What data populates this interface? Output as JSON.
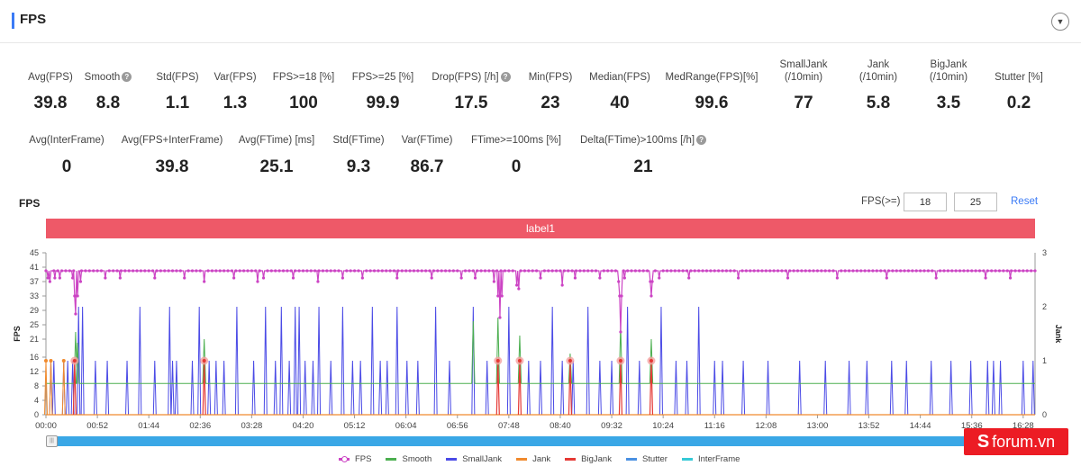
{
  "header": {
    "title": "FPS",
    "collapse_icon": "chevron-down-icon"
  },
  "metrics_row1": [
    {
      "label": "Avg(FPS)",
      "value": "39.8",
      "help": false
    },
    {
      "label": "Smooth",
      "value": "8.8",
      "help": true
    },
    {
      "label": "Std(FPS)",
      "value": "1.1",
      "help": false
    },
    {
      "label": "Var(FPS)",
      "value": "1.3",
      "help": false
    },
    {
      "label": "FPS>=18 [%]",
      "value": "100",
      "help": false
    },
    {
      "label": "FPS>=25 [%]",
      "value": "99.9",
      "help": false
    },
    {
      "label": "Drop(FPS) [/h]",
      "value": "17.5",
      "help": true
    },
    {
      "label": "Min(FPS)",
      "value": "23",
      "help": false
    },
    {
      "label": "Median(FPS)",
      "value": "40",
      "help": false
    },
    {
      "label": "MedRange(FPS)[%]",
      "value": "99.6",
      "help": false
    },
    {
      "label": "SmallJank",
      "label2": "(/10min)",
      "value": "77",
      "help": false
    },
    {
      "label": "Jank",
      "label2": "(/10min)",
      "value": "5.8",
      "help": false
    },
    {
      "label": "BigJank",
      "label2": "(/10min)",
      "value": "3.5",
      "help": false
    },
    {
      "label": "Stutter [%]",
      "value": "0.2",
      "help": false
    }
  ],
  "metrics_row2": [
    {
      "label": "Avg(InterFrame)",
      "value": "0",
      "help": false
    },
    {
      "label": "Avg(FPS+InterFrame)",
      "value": "39.8",
      "help": false
    },
    {
      "label": "Avg(FTime) [ms]",
      "value": "25.1",
      "help": false
    },
    {
      "label": "Std(FTime)",
      "value": "9.3",
      "help": false
    },
    {
      "label": "Var(FTime)",
      "value": "86.7",
      "help": false
    },
    {
      "label": "FTime>=100ms [%]",
      "value": "0",
      "help": false
    },
    {
      "label": "Delta(FTime)>100ms [/h]",
      "value": "21",
      "help": true
    }
  ],
  "controls": {
    "section_title": "FPS",
    "threshold_label": "FPS(>=)",
    "threshold_low": "18",
    "threshold_high": "25",
    "reset_label": "Reset"
  },
  "label_band": "label1",
  "slider_handle_icon": "grip-icon",
  "legend": [
    {
      "name": "FPS",
      "color": "#cc44c4",
      "marker": true
    },
    {
      "name": "Smooth",
      "color": "#4caf50",
      "marker": false
    },
    {
      "name": "SmallJank",
      "color": "#4a4ae6",
      "marker": false
    },
    {
      "name": "Jank",
      "color": "#f08a2e",
      "marker": false
    },
    {
      "name": "BigJank",
      "color": "#e53935",
      "marker": false
    },
    {
      "name": "Stutter",
      "color": "#4a90e2",
      "marker": false
    },
    {
      "name": "InterFrame",
      "color": "#36c9d6",
      "marker": false
    }
  ],
  "watermark": {
    "icon": "s-logo-icon",
    "text": "forum.vn",
    "logo_letter": "S"
  },
  "chart_data": {
    "type": "line",
    "xlabel": "",
    "ylabel": "FPS",
    "ylabel_right": "Jank",
    "ylim": [
      0,
      45
    ],
    "ylim_right": [
      0,
      3
    ],
    "y_ticks": [
      0,
      4,
      8,
      12,
      16,
      21,
      25,
      29,
      33,
      37,
      41,
      45
    ],
    "y_ticks_right": [
      0,
      1,
      2,
      3
    ],
    "x_ticks": [
      "00:00",
      "00:52",
      "01:44",
      "02:36",
      "03:28",
      "04:20",
      "05:12",
      "06:04",
      "06:56",
      "07:48",
      "08:40",
      "09:32",
      "10:24",
      "11:16",
      "12:08",
      "13:00",
      "13:52",
      "14:44",
      "15:36",
      "16:28"
    ],
    "x_max_seconds": 1000,
    "fps_baseline": 40,
    "fps_dips": [
      [
        2,
        38
      ],
      [
        4,
        37
      ],
      [
        9,
        38
      ],
      [
        14,
        38
      ],
      [
        27,
        38
      ],
      [
        29,
        33
      ],
      [
        30,
        28
      ],
      [
        32,
        33
      ],
      [
        35,
        37
      ],
      [
        60,
        38
      ],
      [
        75,
        38
      ],
      [
        110,
        38
      ],
      [
        140,
        38
      ],
      [
        160,
        37
      ],
      [
        190,
        38
      ],
      [
        214,
        37
      ],
      [
        220,
        38
      ],
      [
        250,
        38
      ],
      [
        275,
        37
      ],
      [
        300,
        38
      ],
      [
        320,
        38
      ],
      [
        355,
        38
      ],
      [
        390,
        38
      ],
      [
        420,
        38
      ],
      [
        434,
        38
      ],
      [
        453,
        37
      ],
      [
        457,
        33
      ],
      [
        459,
        27
      ],
      [
        461,
        33
      ],
      [
        476,
        36
      ],
      [
        478,
        35
      ],
      [
        500,
        38
      ],
      [
        522,
        36
      ],
      [
        535,
        38
      ],
      [
        560,
        38
      ],
      [
        579,
        37
      ],
      [
        580,
        33
      ],
      [
        581,
        23
      ],
      [
        582,
        33
      ],
      [
        585,
        38
      ],
      [
        611,
        37
      ],
      [
        612,
        33
      ],
      [
        613,
        37
      ],
      [
        620,
        38
      ],
      [
        650,
        38
      ],
      [
        700,
        38
      ],
      [
        750,
        38
      ],
      [
        800,
        38
      ],
      [
        850,
        38
      ],
      [
        900,
        38
      ],
      [
        950,
        38
      ],
      [
        975,
        38
      ]
    ],
    "smooth_baseline": 8.7,
    "smooth_spikes": [
      [
        30,
        23
      ],
      [
        32,
        20
      ],
      [
        160,
        21
      ],
      [
        432,
        26
      ],
      [
        457,
        27
      ],
      [
        479,
        22
      ],
      [
        530,
        17
      ],
      [
        581,
        25
      ],
      [
        612,
        21
      ]
    ],
    "smalljank_times": [
      5,
      8,
      18,
      22,
      27,
      33,
      37,
      50,
      62,
      82,
      95,
      110,
      125,
      128,
      132,
      148,
      155,
      165,
      172,
      180,
      193,
      210,
      222,
      232,
      238,
      246,
      252,
      256,
      262,
      270,
      276,
      288,
      300,
      310,
      318,
      330,
      338,
      345,
      355,
      365,
      376,
      394,
      408,
      432,
      446,
      468,
      488,
      500,
      512,
      522,
      533,
      548,
      560,
      572,
      588,
      600,
      622,
      637,
      648,
      660,
      676,
      684,
      705,
      730,
      762,
      788,
      812,
      830,
      855,
      870,
      895,
      915,
      935,
      952,
      958,
      965,
      988,
      998
    ],
    "smalljank_heights": [
      1,
      1,
      1,
      1,
      1,
      2,
      2,
      1,
      1,
      1,
      2,
      1,
      2,
      1,
      1,
      1,
      2,
      1,
      1,
      1,
      2,
      1,
      2,
      1,
      2,
      1,
      2,
      2,
      1,
      1,
      2,
      1,
      2,
      1,
      1,
      2,
      1,
      1,
      2,
      1,
      1,
      2,
      1,
      2,
      1,
      2,
      1,
      1,
      2,
      1,
      1,
      2,
      1,
      1,
      2,
      1,
      2,
      1,
      1,
      2,
      1,
      1,
      1,
      1,
      1,
      1,
      1,
      1,
      1,
      1,
      1,
      1,
      1,
      1,
      1,
      1,
      1,
      1
    ],
    "jank_times": [
      0,
      5,
      18
    ],
    "bigjank_times": [
      29,
      160,
      457,
      479,
      530,
      581,
      612
    ]
  }
}
